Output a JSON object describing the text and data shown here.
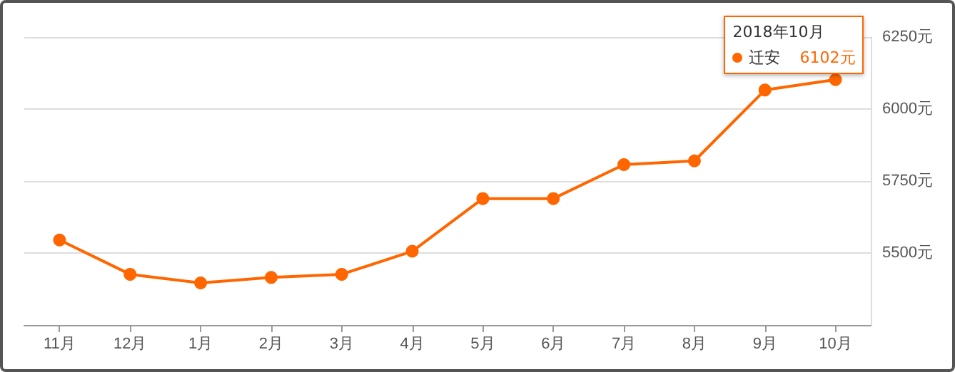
{
  "chart_data": {
    "type": "line",
    "categories": [
      "11月",
      "12月",
      "1月",
      "2月",
      "3月",
      "4月",
      "5月",
      "6月",
      "7月",
      "8月",
      "9月",
      "10月"
    ],
    "series": [
      {
        "name": "迁安",
        "color": "#ff6600",
        "values": [
          5545,
          5426,
          5396,
          5415,
          5426,
          5506,
          5689,
          5689,
          5807,
          5820,
          6066,
          6102
        ],
        "value_labels": [
          null,
          null,
          null,
          null,
          null,
          null,
          null,
          null,
          null,
          null,
          null,
          "6102元"
        ]
      }
    ],
    "ylim": [
      5250,
      6250
    ],
    "yticks": [
      {
        "value": 5250,
        "label": null
      },
      {
        "value": 5500,
        "label": "5500元"
      },
      {
        "value": 5750,
        "label": "5750元"
      },
      {
        "value": 6000,
        "label": "6000元"
      },
      {
        "value": 6250,
        "label": "6250元"
      }
    ],
    "annotations": [
      {
        "text": "2018年10月",
        "x": "10月",
        "y": 6102
      }
    ],
    "grid": "y",
    "marker": "circle",
    "line_style": "solid"
  }
}
